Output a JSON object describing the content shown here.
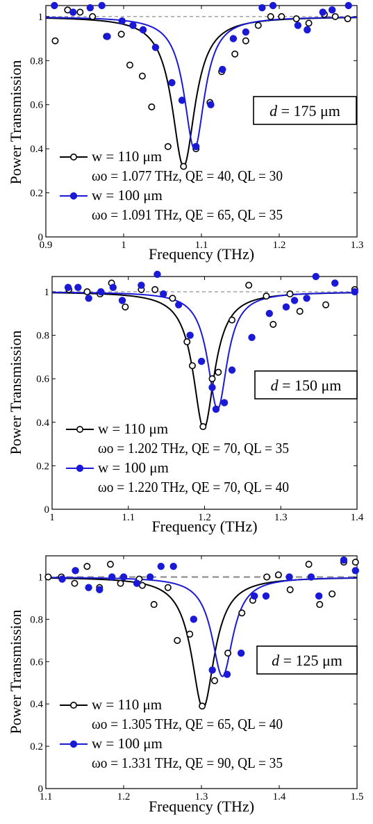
{
  "chart_data": [
    {
      "type": "scatter",
      "xlabel": "Frequency (THz)",
      "ylabel": "Power Transmission",
      "xlim": [
        0.9,
        1.3
      ],
      "ylim": [
        0,
        1.05
      ],
      "xticks": [
        "0.9",
        "1",
        "1.1",
        "1.2",
        "1.3"
      ],
      "yticks": [
        "0",
        "0.2",
        "0.4",
        "0.6",
        "0.8",
        "1"
      ],
      "reference_line": 1,
      "annotation": {
        "prefix": "d",
        "value": "= 175 μm"
      },
      "legend_position": "bottom-left",
      "series": [
        {
          "name": "w = 110 μm",
          "details": "ωo = 1.077 THz, QE = 40, QL = 30",
          "color": "#000000",
          "marker": "open-circle",
          "fit": {
            "f0": 1.077,
            "fwhm": 0.036,
            "min": 0.32
          },
          "points": [
            [
              0.912,
              0.89
            ],
            [
              0.928,
              1.03
            ],
            [
              0.944,
              1.02
            ],
            [
              0.96,
              1.0
            ],
            [
              0.978,
              0.91
            ],
            [
              0.997,
              0.92
            ],
            [
              1.008,
              0.78
            ],
            [
              1.024,
              0.73
            ],
            [
              1.036,
              0.59
            ],
            [
              1.057,
              0.41
            ],
            [
              1.077,
              0.32
            ],
            [
              1.093,
              0.4
            ],
            [
              1.111,
              0.61
            ],
            [
              1.126,
              0.75
            ],
            [
              1.143,
              0.83
            ],
            [
              1.157,
              0.89
            ],
            [
              1.173,
              0.96
            ],
            [
              1.189,
              1.0
            ],
            [
              1.203,
              1.0
            ],
            [
              1.222,
              0.99
            ],
            [
              1.238,
              0.97
            ],
            [
              1.258,
              1.01
            ],
            [
              1.272,
              1.0
            ],
            [
              1.288,
              0.99
            ]
          ]
        },
        {
          "name": "w = 100 μm",
          "details": "ωo = 1.091 THz, QE = 65, QL = 35",
          "color": "#1a1ad6",
          "marker": "filled-circle",
          "fit": {
            "f0": 1.091,
            "fwhm": 0.032,
            "min": 0.4
          },
          "points": [
            [
              0.911,
              1.05
            ],
            [
              0.935,
              1.02
            ],
            [
              0.957,
              1.04
            ],
            [
              0.972,
              1.05
            ],
            [
              0.979,
              0.91
            ],
            [
              0.998,
              0.98
            ],
            [
              1.012,
              0.96
            ],
            [
              1.025,
              0.94
            ],
            [
              1.041,
              0.86
            ],
            [
              1.062,
              0.7
            ],
            [
              1.075,
              0.62
            ],
            [
              1.093,
              0.41
            ],
            [
              1.112,
              0.6
            ],
            [
              1.127,
              0.76
            ],
            [
              1.141,
              0.9
            ],
            [
              1.157,
              0.93
            ],
            [
              1.178,
              1.04
            ],
            [
              1.192,
              1.05
            ],
            [
              1.224,
              0.96
            ],
            [
              1.236,
              0.94
            ],
            [
              1.256,
              1.02
            ],
            [
              1.268,
              1.03
            ],
            [
              1.289,
              1.05
            ]
          ]
        }
      ]
    },
    {
      "type": "scatter",
      "xlabel": "Frequency (THz)",
      "ylabel": "Power Transmission",
      "xlim": [
        1,
        1.4
      ],
      "ylim": [
        0,
        1.07
      ],
      "xticks": [
        "1",
        "1.1",
        "1.2",
        "1.3",
        "1.4"
      ],
      "yticks": [
        "0",
        "0.2",
        "0.4",
        "0.6",
        "0.8",
        "1"
      ],
      "reference_line": 1,
      "annotation": {
        "prefix": "d",
        "value": "= 150 μm"
      },
      "legend_position": "bottom-left",
      "series": [
        {
          "name": "w = 110 μm",
          "details": "ωo = 1.202 THz, QE = 70, QL = 35",
          "color": "#000000",
          "marker": "open-circle",
          "fit": {
            "f0": 1.199,
            "fwhm": 0.034,
            "min": 0.37
          },
          "points": [
            [
              1.022,
              1.01
            ],
            [
              1.046,
              1.0
            ],
            [
              1.063,
              0.99
            ],
            [
              1.078,
              1.04
            ],
            [
              1.096,
              0.93
            ],
            [
              1.117,
              1.01
            ],
            [
              1.135,
              1.01
            ],
            [
              1.158,
              0.97
            ],
            [
              1.177,
              0.77
            ],
            [
              1.184,
              0.66
            ],
            [
              1.198,
              0.38
            ],
            [
              1.21,
              0.6
            ],
            [
              1.218,
              0.63
            ],
            [
              1.236,
              0.87
            ],
            [
              1.258,
              1.03
            ],
            [
              1.281,
              0.98
            ],
            [
              1.29,
              0.85
            ],
            [
              1.312,
              0.99
            ],
            [
              1.325,
              0.91
            ],
            [
              1.359,
              0.94
            ],
            [
              1.397,
              1.01
            ]
          ]
        },
        {
          "name": "w = 100 μm",
          "details": "ωo = 1.220 THz, QE = 70, QL = 40",
          "color": "#1a1ad6",
          "marker": "filled-circle",
          "fit": {
            "f0": 1.217,
            "fwhm": 0.031,
            "min": 0.46
          },
          "points": [
            [
              1.021,
              1.02
            ],
            [
              1.034,
              1.02
            ],
            [
              1.048,
              0.97
            ],
            [
              1.064,
              1.0
            ],
            [
              1.08,
              1.02
            ],
            [
              1.092,
              0.96
            ],
            [
              1.117,
              1.03
            ],
            [
              1.138,
              1.08
            ],
            [
              1.146,
              0.99
            ],
            [
              1.166,
              0.94
            ],
            [
              1.181,
              0.8
            ],
            [
              1.196,
              0.68
            ],
            [
              1.21,
              0.56
            ],
            [
              1.215,
              0.46
            ],
            [
              1.226,
              0.49
            ],
            [
              1.236,
              0.64
            ],
            [
              1.262,
              0.79
            ],
            [
              1.285,
              0.9
            ],
            [
              1.307,
              0.93
            ],
            [
              1.318,
              0.96
            ],
            [
              1.334,
              0.97
            ],
            [
              1.346,
              1.07
            ],
            [
              1.371,
              1.04
            ],
            [
              1.397,
              1.0
            ]
          ]
        }
      ]
    },
    {
      "type": "scatter",
      "xlabel": "Frequency (THz)",
      "ylabel": "Power Transmission",
      "xlim": [
        1.1,
        1.5
      ],
      "ylim": [
        0,
        1.1
      ],
      "xticks": [
        "1.1",
        "1.2",
        "1.3",
        "1.4",
        "1.5"
      ],
      "yticks": [
        "0",
        "0.2",
        "0.4",
        "0.6",
        "0.8",
        "1"
      ],
      "reference_line": 1,
      "annotation": {
        "prefix": "d",
        "value": "= 125 μm"
      },
      "legend_position": "bottom-left",
      "series": [
        {
          "name": "w = 110 μm",
          "details": "ωo = 1.305 THz, QE = 65, QL = 40",
          "color": "#000000",
          "marker": "open-circle",
          "fit": {
            "f0": 1.302,
            "fwhm": 0.036,
            "min": 0.38
          },
          "points": [
            [
              1.103,
              1.0
            ],
            [
              1.12,
              1.0
            ],
            [
              1.137,
              0.97
            ],
            [
              1.153,
              1.05
            ],
            [
              1.169,
              0.95
            ],
            [
              1.183,
              1.06
            ],
            [
              1.196,
              0.97
            ],
            [
              1.22,
              0.99
            ],
            [
              1.224,
              0.96
            ],
            [
              1.239,
              0.87
            ],
            [
              1.257,
              0.95
            ],
            [
              1.269,
              0.7
            ],
            [
              1.285,
              0.73
            ],
            [
              1.301,
              0.39
            ],
            [
              1.317,
              0.51
            ],
            [
              1.334,
              0.64
            ],
            [
              1.352,
              0.83
            ],
            [
              1.366,
              0.89
            ],
            [
              1.384,
              1.0
            ],
            [
              1.399,
              1.01
            ],
            [
              1.414,
              0.94
            ],
            [
              1.438,
              1.06
            ],
            [
              1.452,
              0.87
            ],
            [
              1.468,
              0.92
            ],
            [
              1.483,
              1.07
            ],
            [
              1.498,
              1.07
            ]
          ]
        },
        {
          "name": "w = 100 μm",
          "details": "ωo = 1.331 THz, QE = 90, QL = 35",
          "color": "#1a1ad6",
          "marker": "filled-circle",
          "fit": {
            "f0": 1.327,
            "fwhm": 0.033,
            "min": 0.53
          },
          "points": [
            [
              1.121,
              0.99
            ],
            [
              1.138,
              1.03
            ],
            [
              1.155,
              0.95
            ],
            [
              1.169,
              0.94
            ],
            [
              1.185,
              1.0
            ],
            [
              1.2,
              1.0
            ],
            [
              1.217,
              0.97
            ],
            [
              1.234,
              1.0
            ],
            [
              1.248,
              1.05
            ],
            [
              1.264,
              1.05
            ],
            [
              1.29,
              0.8
            ],
            [
              1.314,
              0.56
            ],
            [
              1.333,
              0.54
            ],
            [
              1.351,
              0.64
            ],
            [
              1.368,
              0.91
            ],
            [
              1.383,
              0.91
            ],
            [
              1.413,
              1.0
            ],
            [
              1.441,
              1.0
            ],
            [
              1.451,
              0.91
            ],
            [
              1.483,
              1.08
            ],
            [
              1.498,
              1.03
            ]
          ]
        }
      ]
    }
  ]
}
